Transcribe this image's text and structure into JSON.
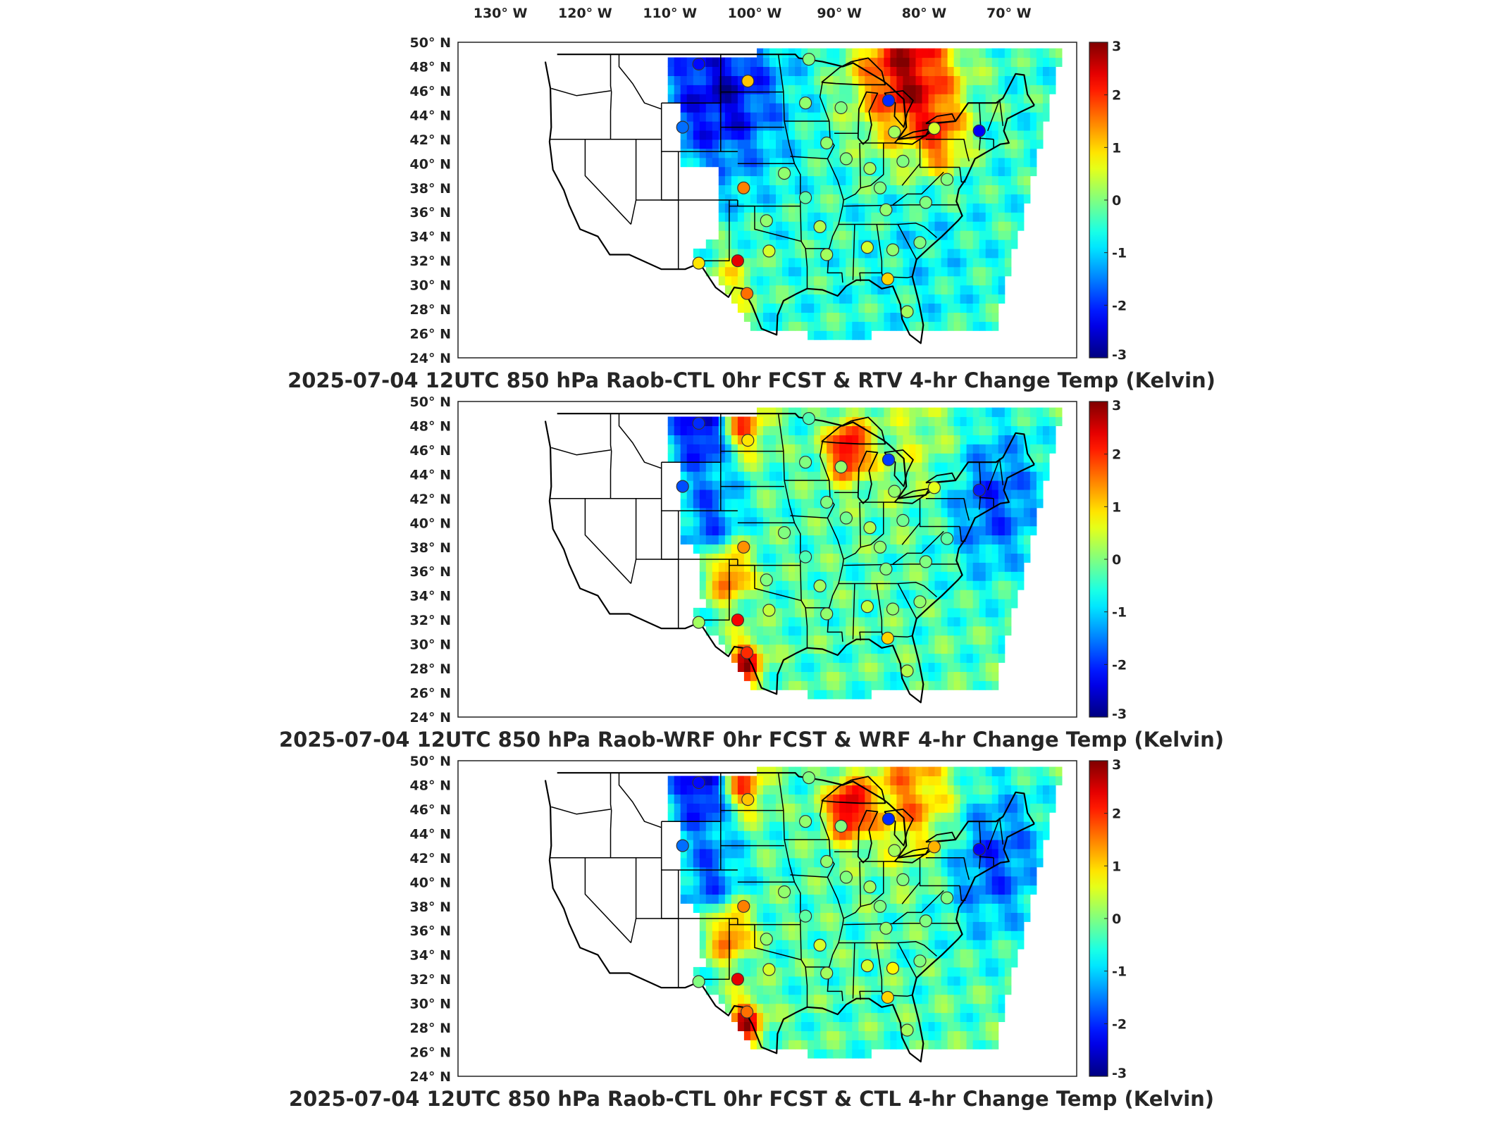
{
  "figure": {
    "lon_tick_labels": [
      "130° W",
      "120° W",
      "110° W",
      "100° W",
      "90° W",
      "80° W",
      "70° W"
    ],
    "lat_tick_labels": [
      "50° N",
      "48° N",
      "46° N",
      "44° N",
      "42° N",
      "40° N",
      "38° N",
      "36° N",
      "34° N",
      "32° N",
      "30° N",
      "28° N",
      "26° N",
      "24° N"
    ]
  },
  "chart_data": [
    {
      "type": "heatmap",
      "title": "2025-07-04 12UTC 850 hPa Raob-CTL 0hr FCST & RTV 4-hr Change Temp (Kelvin)",
      "xlabel": "",
      "ylabel": "",
      "xlim": [
        -135,
        -62
      ],
      "ylim": [
        24,
        50
      ],
      "colorbar": {
        "min": -3,
        "max": 3,
        "ticks": [
          3,
          2,
          1,
          0,
          -1,
          -2,
          -3
        ],
        "colormap": "jet"
      },
      "field_pattern": "rtv",
      "stations": [
        {
          "lon": -106.6,
          "lat": 48.2,
          "value": -2.2
        },
        {
          "lon": -108.5,
          "lat": 43.0,
          "value": -1.6
        },
        {
          "lon": -100.8,
          "lat": 46.8,
          "value": 1.1
        },
        {
          "lon": -93.6,
          "lat": 48.6,
          "value": 0.0
        },
        {
          "lon": -94.0,
          "lat": 45.0,
          "value": 0.1
        },
        {
          "lon": -89.8,
          "lat": 44.6,
          "value": 0.0
        },
        {
          "lon": -84.2,
          "lat": 45.2,
          "value": -2.0
        },
        {
          "lon": -83.5,
          "lat": 42.6,
          "value": 0.2
        },
        {
          "lon": -78.8,
          "lat": 42.9,
          "value": 0.5
        },
        {
          "lon": -73.5,
          "lat": 42.7,
          "value": -2.3
        },
        {
          "lon": -91.5,
          "lat": 41.7,
          "value": 0.1
        },
        {
          "lon": -89.2,
          "lat": 40.4,
          "value": 0.0
        },
        {
          "lon": -86.4,
          "lat": 39.6,
          "value": 0.2
        },
        {
          "lon": -82.5,
          "lat": 40.2,
          "value": 0.0
        },
        {
          "lon": -96.5,
          "lat": 39.2,
          "value": 0.1
        },
        {
          "lon": -101.3,
          "lat": 38.0,
          "value": 1.5
        },
        {
          "lon": -94.0,
          "lat": 37.2,
          "value": -0.2
        },
        {
          "lon": -85.2,
          "lat": 38.0,
          "value": 0.0
        },
        {
          "lon": -77.3,
          "lat": 38.7,
          "value": 0.0
        },
        {
          "lon": -79.8,
          "lat": 36.8,
          "value": 0.0
        },
        {
          "lon": -98.6,
          "lat": 35.3,
          "value": 0.1
        },
        {
          "lon": -92.3,
          "lat": 34.8,
          "value": 0.3
        },
        {
          "lon": -84.5,
          "lat": 36.2,
          "value": 0.1
        },
        {
          "lon": -98.3,
          "lat": 32.8,
          "value": 0.5
        },
        {
          "lon": -91.5,
          "lat": 32.5,
          "value": 0.2
        },
        {
          "lon": -86.7,
          "lat": 33.1,
          "value": 0.5
        },
        {
          "lon": -83.7,
          "lat": 32.9,
          "value": 0.1
        },
        {
          "lon": -80.5,
          "lat": 33.5,
          "value": 0.0
        },
        {
          "lon": -106.6,
          "lat": 31.8,
          "value": 0.9
        },
        {
          "lon": -102.0,
          "lat": 32.0,
          "value": 2.4
        },
        {
          "lon": -100.9,
          "lat": 29.3,
          "value": 1.6
        },
        {
          "lon": -84.3,
          "lat": 30.5,
          "value": 1.0
        },
        {
          "lon": -82.0,
          "lat": 27.8,
          "value": 0.2
        }
      ]
    },
    {
      "type": "heatmap",
      "title": "2025-07-04 12UTC 850 hPa Raob-WRF 0hr FCST & WRF 4-hr Change Temp (Kelvin)",
      "xlabel": "",
      "ylabel": "",
      "xlim": [
        -135,
        -62
      ],
      "ylim": [
        24,
        50
      ],
      "colorbar": {
        "min": -3,
        "max": 3,
        "ticks": [
          3,
          2,
          1,
          0,
          -1,
          -2,
          -3
        ],
        "colormap": "jet"
      },
      "field_pattern": "wrf",
      "stations": [
        {
          "lon": -106.6,
          "lat": 48.2,
          "value": -2.0
        },
        {
          "lon": -108.5,
          "lat": 43.0,
          "value": -1.8
        },
        {
          "lon": -100.8,
          "lat": 46.8,
          "value": 0.9
        },
        {
          "lon": -93.6,
          "lat": 48.6,
          "value": -0.3
        },
        {
          "lon": -94.0,
          "lat": 45.0,
          "value": 0.0
        },
        {
          "lon": -89.8,
          "lat": 44.6,
          "value": 0.1
        },
        {
          "lon": -84.2,
          "lat": 45.2,
          "value": -1.9
        },
        {
          "lon": -83.5,
          "lat": 42.6,
          "value": 0.1
        },
        {
          "lon": -78.8,
          "lat": 42.9,
          "value": 0.6
        },
        {
          "lon": -73.5,
          "lat": 42.7,
          "value": -2.1
        },
        {
          "lon": -91.5,
          "lat": 41.7,
          "value": 0.0
        },
        {
          "lon": -89.2,
          "lat": 40.4,
          "value": -0.1
        },
        {
          "lon": -86.4,
          "lat": 39.6,
          "value": 0.3
        },
        {
          "lon": -82.5,
          "lat": 40.2,
          "value": -0.1
        },
        {
          "lon": -96.5,
          "lat": 39.2,
          "value": 0.0
        },
        {
          "lon": -101.3,
          "lat": 38.0,
          "value": 1.4
        },
        {
          "lon": -94.0,
          "lat": 37.2,
          "value": -0.3
        },
        {
          "lon": -85.2,
          "lat": 38.0,
          "value": 0.1
        },
        {
          "lon": -77.3,
          "lat": 38.7,
          "value": -0.2
        },
        {
          "lon": -79.8,
          "lat": 36.8,
          "value": 0.0
        },
        {
          "lon": -98.6,
          "lat": 35.3,
          "value": 0.0
        },
        {
          "lon": -92.3,
          "lat": 34.8,
          "value": 0.2
        },
        {
          "lon": -84.5,
          "lat": 36.2,
          "value": 0.0
        },
        {
          "lon": -98.3,
          "lat": 32.8,
          "value": 0.4
        },
        {
          "lon": -91.5,
          "lat": 32.5,
          "value": 0.1
        },
        {
          "lon": -86.7,
          "lat": 33.1,
          "value": 0.4
        },
        {
          "lon": -83.7,
          "lat": 32.9,
          "value": 0.1
        },
        {
          "lon": -80.5,
          "lat": 33.5,
          "value": 0.1
        },
        {
          "lon": -106.6,
          "lat": 31.8,
          "value": 0.2
        },
        {
          "lon": -102.0,
          "lat": 32.0,
          "value": 2.3
        },
        {
          "lon": -100.9,
          "lat": 29.3,
          "value": 2.0
        },
        {
          "lon": -84.3,
          "lat": 30.5,
          "value": 1.0
        },
        {
          "lon": -82.0,
          "lat": 27.8,
          "value": 0.3
        }
      ]
    },
    {
      "type": "heatmap",
      "title": "2025-07-04 12UTC 850 hPa Raob-CTL 0hr FCST & CTL 4-hr Change Temp (Kelvin)",
      "xlabel": "",
      "ylabel": "",
      "xlim": [
        -135,
        -62
      ],
      "ylim": [
        24,
        50
      ],
      "colorbar": {
        "min": -3,
        "max": 3,
        "ticks": [
          3,
          2,
          1,
          0,
          -1,
          -2,
          -3
        ],
        "colormap": "jet"
      },
      "field_pattern": "ctl",
      "stations": [
        {
          "lon": -106.6,
          "lat": 48.2,
          "value": -2.2
        },
        {
          "lon": -108.5,
          "lat": 43.0,
          "value": -1.6
        },
        {
          "lon": -100.8,
          "lat": 46.8,
          "value": 1.1
        },
        {
          "lon": -93.6,
          "lat": 48.6,
          "value": 0.0
        },
        {
          "lon": -94.0,
          "lat": 45.0,
          "value": 0.1
        },
        {
          "lon": -89.8,
          "lat": 44.6,
          "value": 0.0
        },
        {
          "lon": -84.2,
          "lat": 45.2,
          "value": -2.0
        },
        {
          "lon": -83.5,
          "lat": 42.6,
          "value": 0.2
        },
        {
          "lon": -78.8,
          "lat": 42.9,
          "value": 1.2
        },
        {
          "lon": -73.5,
          "lat": 42.7,
          "value": -2.3
        },
        {
          "lon": -91.5,
          "lat": 41.7,
          "value": 0.1
        },
        {
          "lon": -89.2,
          "lat": 40.4,
          "value": 0.0
        },
        {
          "lon": -86.4,
          "lat": 39.6,
          "value": 0.2
        },
        {
          "lon": -82.5,
          "lat": 40.2,
          "value": 0.0
        },
        {
          "lon": -96.5,
          "lat": 39.2,
          "value": 0.1
        },
        {
          "lon": -101.3,
          "lat": 38.0,
          "value": 1.5
        },
        {
          "lon": -94.0,
          "lat": 37.2,
          "value": -0.2
        },
        {
          "lon": -85.2,
          "lat": 38.0,
          "value": 0.0
        },
        {
          "lon": -77.3,
          "lat": 38.7,
          "value": 0.0
        },
        {
          "lon": -79.8,
          "lat": 36.8,
          "value": 0.0
        },
        {
          "lon": -98.6,
          "lat": 35.3,
          "value": 0.1
        },
        {
          "lon": -92.3,
          "lat": 34.8,
          "value": 0.5
        },
        {
          "lon": -84.5,
          "lat": 36.2,
          "value": 0.1
        },
        {
          "lon": -98.3,
          "lat": 32.8,
          "value": 0.5
        },
        {
          "lon": -91.5,
          "lat": 32.5,
          "value": 0.2
        },
        {
          "lon": -86.7,
          "lat": 33.1,
          "value": 0.5
        },
        {
          "lon": -83.7,
          "lat": 32.9,
          "value": 0.8
        },
        {
          "lon": -80.5,
          "lat": 33.5,
          "value": 0.0
        },
        {
          "lon": -106.6,
          "lat": 31.8,
          "value": 0.0
        },
        {
          "lon": -102.0,
          "lat": 32.0,
          "value": 2.4
        },
        {
          "lon": -100.9,
          "lat": 29.3,
          "value": 1.6
        },
        {
          "lon": -84.3,
          "lat": 30.5,
          "value": 1.0
        },
        {
          "lon": -82.0,
          "lat": 27.8,
          "value": 0.2
        }
      ]
    }
  ]
}
